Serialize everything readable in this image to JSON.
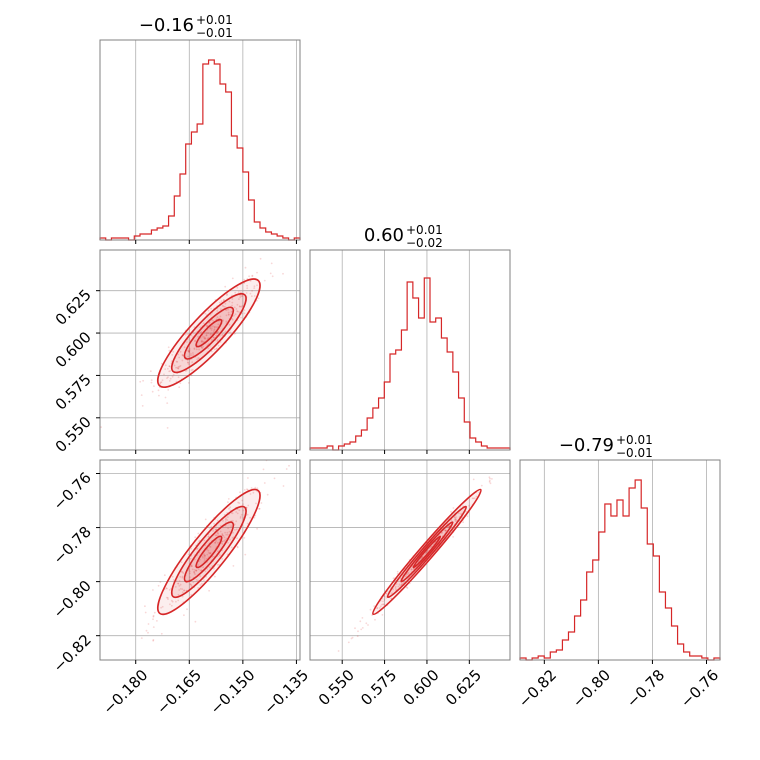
{
  "chart_data": {
    "type": "corner",
    "color": "#d62728",
    "axis_frame_color": "#808080",
    "grid": true,
    "params": [
      {
        "title": {
          "main": "−0.16",
          "upper": "+0.01",
          "lower": "−0.01"
        },
        "range": [
          -0.19,
          -0.134
        ],
        "ticks": [
          -0.18,
          -0.165,
          -0.15,
          -0.135
        ],
        "tick_labels": [
          "−0.180",
          "−0.165",
          "−0.150",
          "−0.135"
        ],
        "hist": [
          0.01,
          0.0,
          0.01,
          0.01,
          0.01,
          0.0,
          0.02,
          0.03,
          0.03,
          0.05,
          0.06,
          0.07,
          0.12,
          0.22,
          0.33,
          0.48,
          0.54,
          0.58,
          0.88,
          0.9,
          0.88,
          0.78,
          0.74,
          0.52,
          0.46,
          0.34,
          0.2,
          0.09,
          0.06,
          0.04,
          0.03,
          0.02,
          0.01,
          0.0,
          0.01
        ]
      },
      {
        "title": {
          "main": "0.60",
          "upper": "+0.01",
          "lower": "−0.02"
        },
        "range": [
          0.531,
          0.649
        ],
        "ticks": [
          0.55,
          0.575,
          0.6,
          0.625
        ],
        "tick_labels": [
          "0.550",
          "0.575",
          "0.600",
          "0.625"
        ],
        "hist": [
          0.01,
          0.01,
          0.01,
          0.02,
          0.0,
          0.02,
          0.03,
          0.04,
          0.07,
          0.1,
          0.16,
          0.21,
          0.26,
          0.34,
          0.48,
          0.5,
          0.6,
          0.84,
          0.76,
          0.66,
          0.86,
          0.64,
          0.66,
          0.56,
          0.49,
          0.39,
          0.26,
          0.14,
          0.06,
          0.04,
          0.02,
          0.01,
          0.01,
          0.01,
          0.01
        ]
      },
      {
        "title": {
          "main": "−0.79",
          "upper": "+0.01",
          "lower": "−0.01"
        },
        "range": [
          -0.829,
          -0.755
        ],
        "ticks": [
          -0.82,
          -0.8,
          -0.78,
          -0.76
        ],
        "tick_labels": [
          "−0.82",
          "−0.80",
          "−0.78",
          "−0.76"
        ],
        "hist": [
          0.01,
          0.0,
          0.01,
          0.02,
          0.01,
          0.04,
          0.05,
          0.1,
          0.14,
          0.22,
          0.3,
          0.44,
          0.5,
          0.64,
          0.78,
          0.72,
          0.8,
          0.72,
          0.86,
          0.9,
          0.76,
          0.58,
          0.52,
          0.34,
          0.26,
          0.17,
          0.08,
          0.04,
          0.02,
          0.02,
          0.01,
          0.0,
          0.01
        ]
      }
    ],
    "correlations": {
      "0-1": 0.88,
      "0-2": 0.9,
      "1-2": 0.985
    }
  }
}
